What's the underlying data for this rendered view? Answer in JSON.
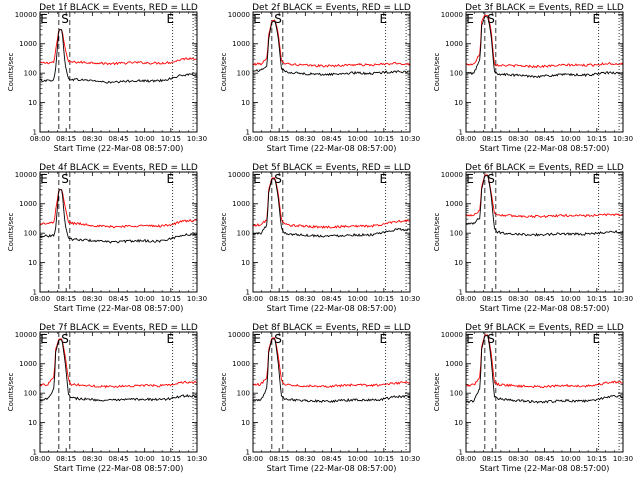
{
  "figure": {
    "ylabel": "Counts/sec",
    "xlabel": "Start Time (22-Mar-08 08:57:00)",
    "x_ticks": [
      "08:00",
      "08:15",
      "08:30",
      "08:45",
      "10:00",
      "10:15",
      "10:30"
    ],
    "y_ticks": [
      "1",
      "10",
      "100",
      "1000",
      "10000"
    ],
    "marker_s": "S",
    "marker_e": "E",
    "series_colors": {
      "events": "#000000",
      "lld": "#ff0000"
    }
  },
  "chart_data": [
    {
      "type": "line",
      "scale": "log",
      "ylim": [
        1,
        12000
      ],
      "grid": false,
      "title": "Det 1f BLACK = Events, RED = LLD",
      "x": [
        0,
        0.05,
        0.09,
        0.1,
        0.12,
        0.14,
        0.16,
        0.18,
        0.2,
        0.25,
        0.3,
        0.35,
        0.4,
        0.45,
        0.5,
        0.55,
        0.6,
        0.65,
        0.7,
        0.75,
        0.8,
        0.85,
        0.9,
        0.95,
        1
      ],
      "series": [
        {
          "values": [
            220,
            225,
            240,
            600,
            3000,
            3000,
            700,
            250,
            240,
            235,
            230,
            228,
            215,
            210,
            215,
            222,
            230,
            228,
            222,
            220,
            225,
            240,
            300,
            320,
            315
          ]
        },
        {
          "values": [
            58,
            56,
            60,
            150,
            3000,
            3000,
            200,
            65,
            62,
            60,
            58,
            55,
            50,
            48,
            50,
            53,
            56,
            55,
            54,
            55,
            60,
            70,
            85,
            88,
            86
          ]
        }
      ]
    },
    {
      "type": "line",
      "scale": "log",
      "ylim": [
        1,
        12000
      ],
      "grid": false,
      "title": "Det 2f BLACK = Events, RED = LLD",
      "x": [
        0,
        0.05,
        0.09,
        0.1,
        0.12,
        0.14,
        0.16,
        0.18,
        0.2,
        0.25,
        0.3,
        0.35,
        0.4,
        0.45,
        0.5,
        0.55,
        0.6,
        0.65,
        0.7,
        0.75,
        0.8,
        0.85,
        0.9,
        0.95,
        1
      ],
      "series": [
        {
          "values": [
            200,
            210,
            300,
            2000,
            6000,
            6500,
            2500,
            300,
            220,
            200,
            190,
            185,
            180,
            175,
            178,
            182,
            190,
            195,
            192,
            190,
            195,
            205,
            215,
            210,
            205
          ]
        },
        {
          "values": [
            120,
            125,
            180,
            1500,
            5500,
            6000,
            1800,
            150,
            115,
            105,
            98,
            95,
            92,
            90,
            92,
            95,
            100,
            102,
            100,
            98,
            102,
            108,
            115,
            112,
            108
          ]
        }
      ]
    },
    {
      "type": "line",
      "scale": "log",
      "ylim": [
        1,
        12000
      ],
      "grid": false,
      "title": "Det 3f BLACK = Events, RED = LLD",
      "x": [
        0,
        0.05,
        0.09,
        0.1,
        0.12,
        0.14,
        0.16,
        0.18,
        0.2,
        0.25,
        0.3,
        0.35,
        0.4,
        0.45,
        0.5,
        0.55,
        0.6,
        0.65,
        0.7,
        0.75,
        0.8,
        0.85,
        0.9,
        0.95,
        1
      ],
      "series": [
        {
          "values": [
            200,
            200,
            500,
            6000,
            9500,
            9000,
            3000,
            200,
            190,
            185,
            180,
            178,
            172,
            170,
            172,
            178,
            185,
            190,
            188,
            185,
            190,
            200,
            215,
            210,
            205
          ]
        },
        {
          "values": [
            100,
            100,
            300,
            4000,
            8500,
            8000,
            2000,
            110,
            95,
            90,
            86,
            84,
            80,
            78,
            80,
            84,
            88,
            90,
            88,
            86,
            90,
            96,
            104,
            100,
            98
          ]
        }
      ]
    },
    {
      "type": "line",
      "scale": "log",
      "ylim": [
        1,
        12000
      ],
      "grid": false,
      "title": "Det 4f BLACK = Events, RED = LLD",
      "x": [
        0,
        0.05,
        0.09,
        0.1,
        0.12,
        0.14,
        0.16,
        0.18,
        0.2,
        0.25,
        0.3,
        0.35,
        0.4,
        0.45,
        0.5,
        0.55,
        0.6,
        0.65,
        0.7,
        0.75,
        0.8,
        0.85,
        0.9,
        0.95,
        1
      ],
      "series": [
        {
          "values": [
            210,
            212,
            230,
            600,
            3000,
            3000,
            800,
            250,
            220,
            210,
            195,
            180,
            170,
            165,
            168,
            172,
            178,
            180,
            176,
            175,
            182,
            205,
            250,
            270,
            260
          ]
        },
        {
          "values": [
            82,
            80,
            85,
            150,
            3000,
            3000,
            200,
            70,
            62,
            60,
            58,
            55,
            52,
            50,
            51,
            53,
            55,
            56,
            54,
            53,
            58,
            70,
            85,
            90,
            88
          ]
        }
      ]
    },
    {
      "type": "line",
      "scale": "log",
      "ylim": [
        1,
        12000
      ],
      "grid": false,
      "title": "Det 5f BLACK = Events, RED = LLD",
      "x": [
        0,
        0.05,
        0.09,
        0.1,
        0.12,
        0.14,
        0.16,
        0.18,
        0.2,
        0.25,
        0.3,
        0.35,
        0.4,
        0.45,
        0.5,
        0.55,
        0.6,
        0.65,
        0.7,
        0.75,
        0.8,
        0.85,
        0.9,
        0.95,
        1
      ],
      "series": [
        {
          "values": [
            180,
            190,
            300,
            3000,
            7500,
            7500,
            2500,
            300,
            200,
            185,
            175,
            170,
            165,
            160,
            162,
            166,
            172,
            175,
            174,
            175,
            185,
            215,
            250,
            260,
            255
          ]
        },
        {
          "values": [
            95,
            100,
            200,
            2500,
            7000,
            7000,
            1800,
            150,
            100,
            92,
            88,
            85,
            82,
            80,
            81,
            83,
            86,
            88,
            87,
            88,
            95,
            110,
            130,
            135,
            132
          ]
        }
      ]
    },
    {
      "type": "line",
      "scale": "log",
      "ylim": [
        1,
        12000
      ],
      "grid": false,
      "title": "Det 6f BLACK = Events, RED = LLD",
      "x": [
        0,
        0.05,
        0.09,
        0.1,
        0.12,
        0.14,
        0.16,
        0.18,
        0.2,
        0.25,
        0.3,
        0.35,
        0.4,
        0.45,
        0.5,
        0.55,
        0.6,
        0.65,
        0.7,
        0.75,
        0.8,
        0.85,
        0.9,
        0.95,
        1
      ],
      "series": [
        {
          "values": [
            400,
            420,
            600,
            4000,
            9500,
            9500,
            2500,
            500,
            420,
            400,
            390,
            380,
            375,
            370,
            375,
            385,
            395,
            400,
            398,
            395,
            400,
            410,
            430,
            430,
            425
          ]
        },
        {
          "values": [
            200,
            210,
            350,
            3000,
            9000,
            9000,
            2000,
            150,
            110,
            100,
            95,
            92,
            90,
            88,
            90,
            92,
            95,
            96,
            95,
            94,
            96,
            100,
            110,
            112,
            110
          ]
        }
      ]
    },
    {
      "type": "line",
      "scale": "log",
      "ylim": [
        1,
        12000
      ],
      "grid": false,
      "title": "Det 7f BLACK = Events, RED = LLD",
      "x": [
        0,
        0.05,
        0.09,
        0.1,
        0.12,
        0.14,
        0.16,
        0.18,
        0.2,
        0.25,
        0.3,
        0.35,
        0.4,
        0.45,
        0.5,
        0.55,
        0.6,
        0.65,
        0.7,
        0.75,
        0.8,
        0.85,
        0.9,
        0.95,
        1
      ],
      "series": [
        {
          "values": [
            190,
            200,
            400,
            3000,
            7000,
            7000,
            2000,
            300,
            200,
            190,
            180,
            175,
            170,
            168,
            170,
            174,
            180,
            184,
            182,
            180,
            185,
            200,
            230,
            240,
            235
          ]
        },
        {
          "values": [
            60,
            65,
            150,
            2500,
            6500,
            6500,
            1200,
            100,
            70,
            65,
            62,
            60,
            58,
            57,
            58,
            60,
            62,
            63,
            62,
            60,
            62,
            70,
            80,
            82,
            80
          ]
        }
      ]
    },
    {
      "type": "line",
      "scale": "log",
      "ylim": [
        1,
        12000
      ],
      "grid": false,
      "title": "Det 8f BLACK = Events, RED = LLD",
      "x": [
        0,
        0.05,
        0.09,
        0.1,
        0.12,
        0.14,
        0.16,
        0.18,
        0.2,
        0.25,
        0.3,
        0.35,
        0.4,
        0.45,
        0.5,
        0.55,
        0.6,
        0.65,
        0.7,
        0.75,
        0.8,
        0.85,
        0.9,
        0.95,
        1
      ],
      "series": [
        {
          "values": [
            190,
            200,
            350,
            3000,
            7500,
            7500,
            2000,
            300,
            200,
            190,
            182,
            178,
            175,
            172,
            175,
            180,
            185,
            190,
            188,
            185,
            190,
            200,
            220,
            230,
            225
          ]
        },
        {
          "values": [
            55,
            60,
            150,
            2500,
            7000,
            7000,
            1200,
            80,
            65,
            60,
            58,
            56,
            54,
            53,
            54,
            56,
            58,
            60,
            59,
            58,
            60,
            66,
            75,
            78,
            76
          ]
        }
      ]
    },
    {
      "type": "line",
      "scale": "log",
      "ylim": [
        1,
        12000
      ],
      "grid": false,
      "title": "Det 9f BLACK = Events, RED = LLD",
      "x": [
        0,
        0.05,
        0.09,
        0.1,
        0.12,
        0.14,
        0.16,
        0.18,
        0.2,
        0.25,
        0.3,
        0.35,
        0.4,
        0.45,
        0.5,
        0.55,
        0.6,
        0.65,
        0.7,
        0.75,
        0.8,
        0.85,
        0.9,
        0.95,
        1
      ],
      "series": [
        {
          "values": [
            180,
            190,
            350,
            4000,
            9500,
            9500,
            2500,
            250,
            200,
            190,
            180,
            175,
            170,
            165,
            168,
            172,
            178,
            180,
            176,
            175,
            182,
            200,
            230,
            240,
            235
          ]
        },
        {
          "values": [
            50,
            55,
            150,
            3000,
            9000,
            9000,
            1500,
            80,
            65,
            60,
            57,
            55,
            52,
            50,
            51,
            53,
            55,
            56,
            54,
            53,
            56,
            64,
            75,
            78,
            76
          ]
        }
      ]
    }
  ]
}
